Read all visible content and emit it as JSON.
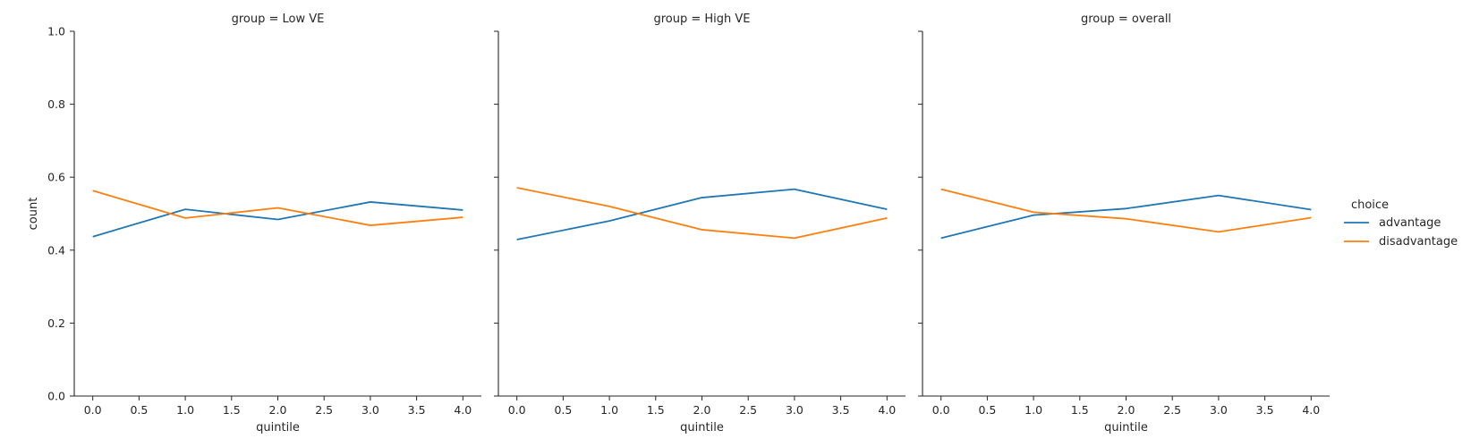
{
  "chart_data": {
    "type": "line",
    "ylabel": "count",
    "xlabel": "quintile",
    "ylim": [
      0,
      1
    ],
    "xlim": [
      -0.2,
      4.2
    ],
    "x": [
      0,
      1,
      2,
      3,
      4
    ],
    "xticks": [
      "0.0",
      "0.5",
      "1.0",
      "1.5",
      "2.0",
      "2.5",
      "3.0",
      "3.5",
      "4.0"
    ],
    "yticks": [
      "0.0",
      "0.2",
      "0.4",
      "0.6",
      "0.8",
      "1.0"
    ],
    "grid": false,
    "legend": {
      "title": "choice",
      "placement": "right",
      "entries": [
        {
          "name": "advantage",
          "color": "#1f77b4"
        },
        {
          "name": "disadvantage",
          "color": "#ff7f0e"
        }
      ]
    },
    "panels": [
      {
        "title": "group = Low VE",
        "series": [
          {
            "name": "advantage",
            "values": [
              0.437,
              0.512,
              0.484,
              0.532,
              0.51
            ]
          },
          {
            "name": "disadvantage",
            "values": [
              0.563,
              0.488,
              0.516,
              0.468,
              0.49
            ]
          }
        ]
      },
      {
        "title": "group = High VE",
        "series": [
          {
            "name": "advantage",
            "values": [
              0.429,
              0.48,
              0.544,
              0.567,
              0.512
            ]
          },
          {
            "name": "disadvantage",
            "values": [
              0.571,
              0.52,
              0.456,
              0.433,
              0.488
            ]
          }
        ]
      },
      {
        "title": "group = overall",
        "series": [
          {
            "name": "advantage",
            "values": [
              0.433,
              0.496,
              0.514,
              0.55,
              0.511
            ]
          },
          {
            "name": "disadvantage",
            "values": [
              0.567,
              0.504,
              0.486,
              0.45,
              0.489
            ]
          }
        ]
      }
    ]
  }
}
